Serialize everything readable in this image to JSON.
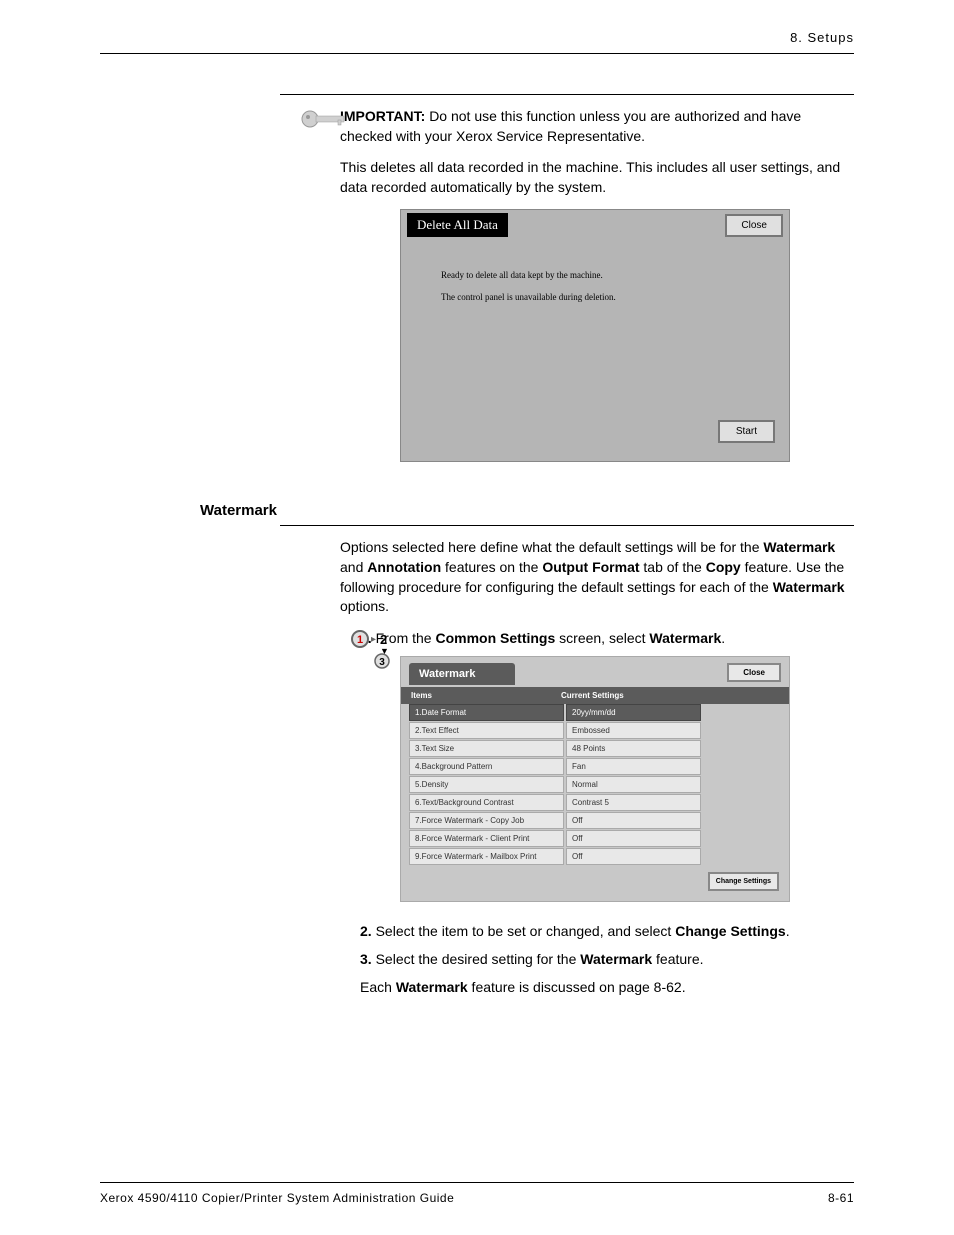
{
  "header": {
    "chapter": "8. Setups"
  },
  "top_section": {
    "important_label": "IMPORTANT:",
    "important_text": "Do not use this function unless you are authorized and have checked with your Xerox Service Representative.",
    "description": "This deletes all data recorded in the machine. This includes all user settings, and data recorded automatically by the system."
  },
  "dialog1": {
    "title": "Delete All Data",
    "close": "Close",
    "line1": "Ready to delete all data kept by the machine.",
    "line2": "The control panel is unavailable during deletion.",
    "start": "Start"
  },
  "watermark_section": {
    "heading": "Watermark",
    "intro_p1": "Options selected here define what the default settings will be for the ",
    "intro_b1": "Watermark",
    "intro_p2": " and ",
    "intro_b2": "Annotation",
    "intro_p3": " features on the ",
    "intro_b3": "Output Format",
    "intro_p4": " tab of the ",
    "intro_b4": "Copy",
    "intro_p5": " feature.  Use the following procedure for configuring the default settings for each of the ",
    "intro_b5": "Watermark",
    "intro_p6": " options.",
    "step1_a": "From the ",
    "step1_b": "Common Settings",
    "step1_c": " screen, select ",
    "step1_d": "Watermark",
    "step1_e": ".",
    "step2_a": "Select the item to be set or changed, and select ",
    "step2_b": "Change Settings",
    "step2_c": ".",
    "step3_a": "Select the desired setting for the ",
    "step3_b": "Watermark",
    "step3_c": " feature.",
    "step4_a": "Each ",
    "step4_b": "Watermark",
    "step4_c": " feature is discussed on page 8-62."
  },
  "dialog2": {
    "title": "Watermark",
    "close": "Close",
    "col_items": "Items",
    "col_settings": "Current Settings",
    "change": "Change Settings",
    "rows": [
      {
        "item": "1.Date Format",
        "setting": "20yy/mm/dd"
      },
      {
        "item": "2.Text Effect",
        "setting": "Embossed"
      },
      {
        "item": "3.Text Size",
        "setting": "48 Points"
      },
      {
        "item": "4.Background Pattern",
        "setting": "Fan"
      },
      {
        "item": "5.Density",
        "setting": "Normal"
      },
      {
        "item": "6.Text/Background Contrast",
        "setting": "Contrast 5"
      },
      {
        "item": "7.Force Watermark     - Copy Job",
        "setting": "Off"
      },
      {
        "item": "8.Force Watermark     - Client Print",
        "setting": "Off"
      },
      {
        "item": "9.Force Watermark     - Mailbox Print",
        "setting": "Off"
      }
    ]
  },
  "footer": {
    "left": "Xerox 4590/4110 Copier/Printer System Administration Guide",
    "right": "8-61"
  },
  "colors": {
    "dialog1_bg": "#b5b5b5",
    "dialog2_bg": "#c8c8c8",
    "dialog2_dark": "#5b5b5b",
    "button_bg": "#e8e8e8"
  }
}
